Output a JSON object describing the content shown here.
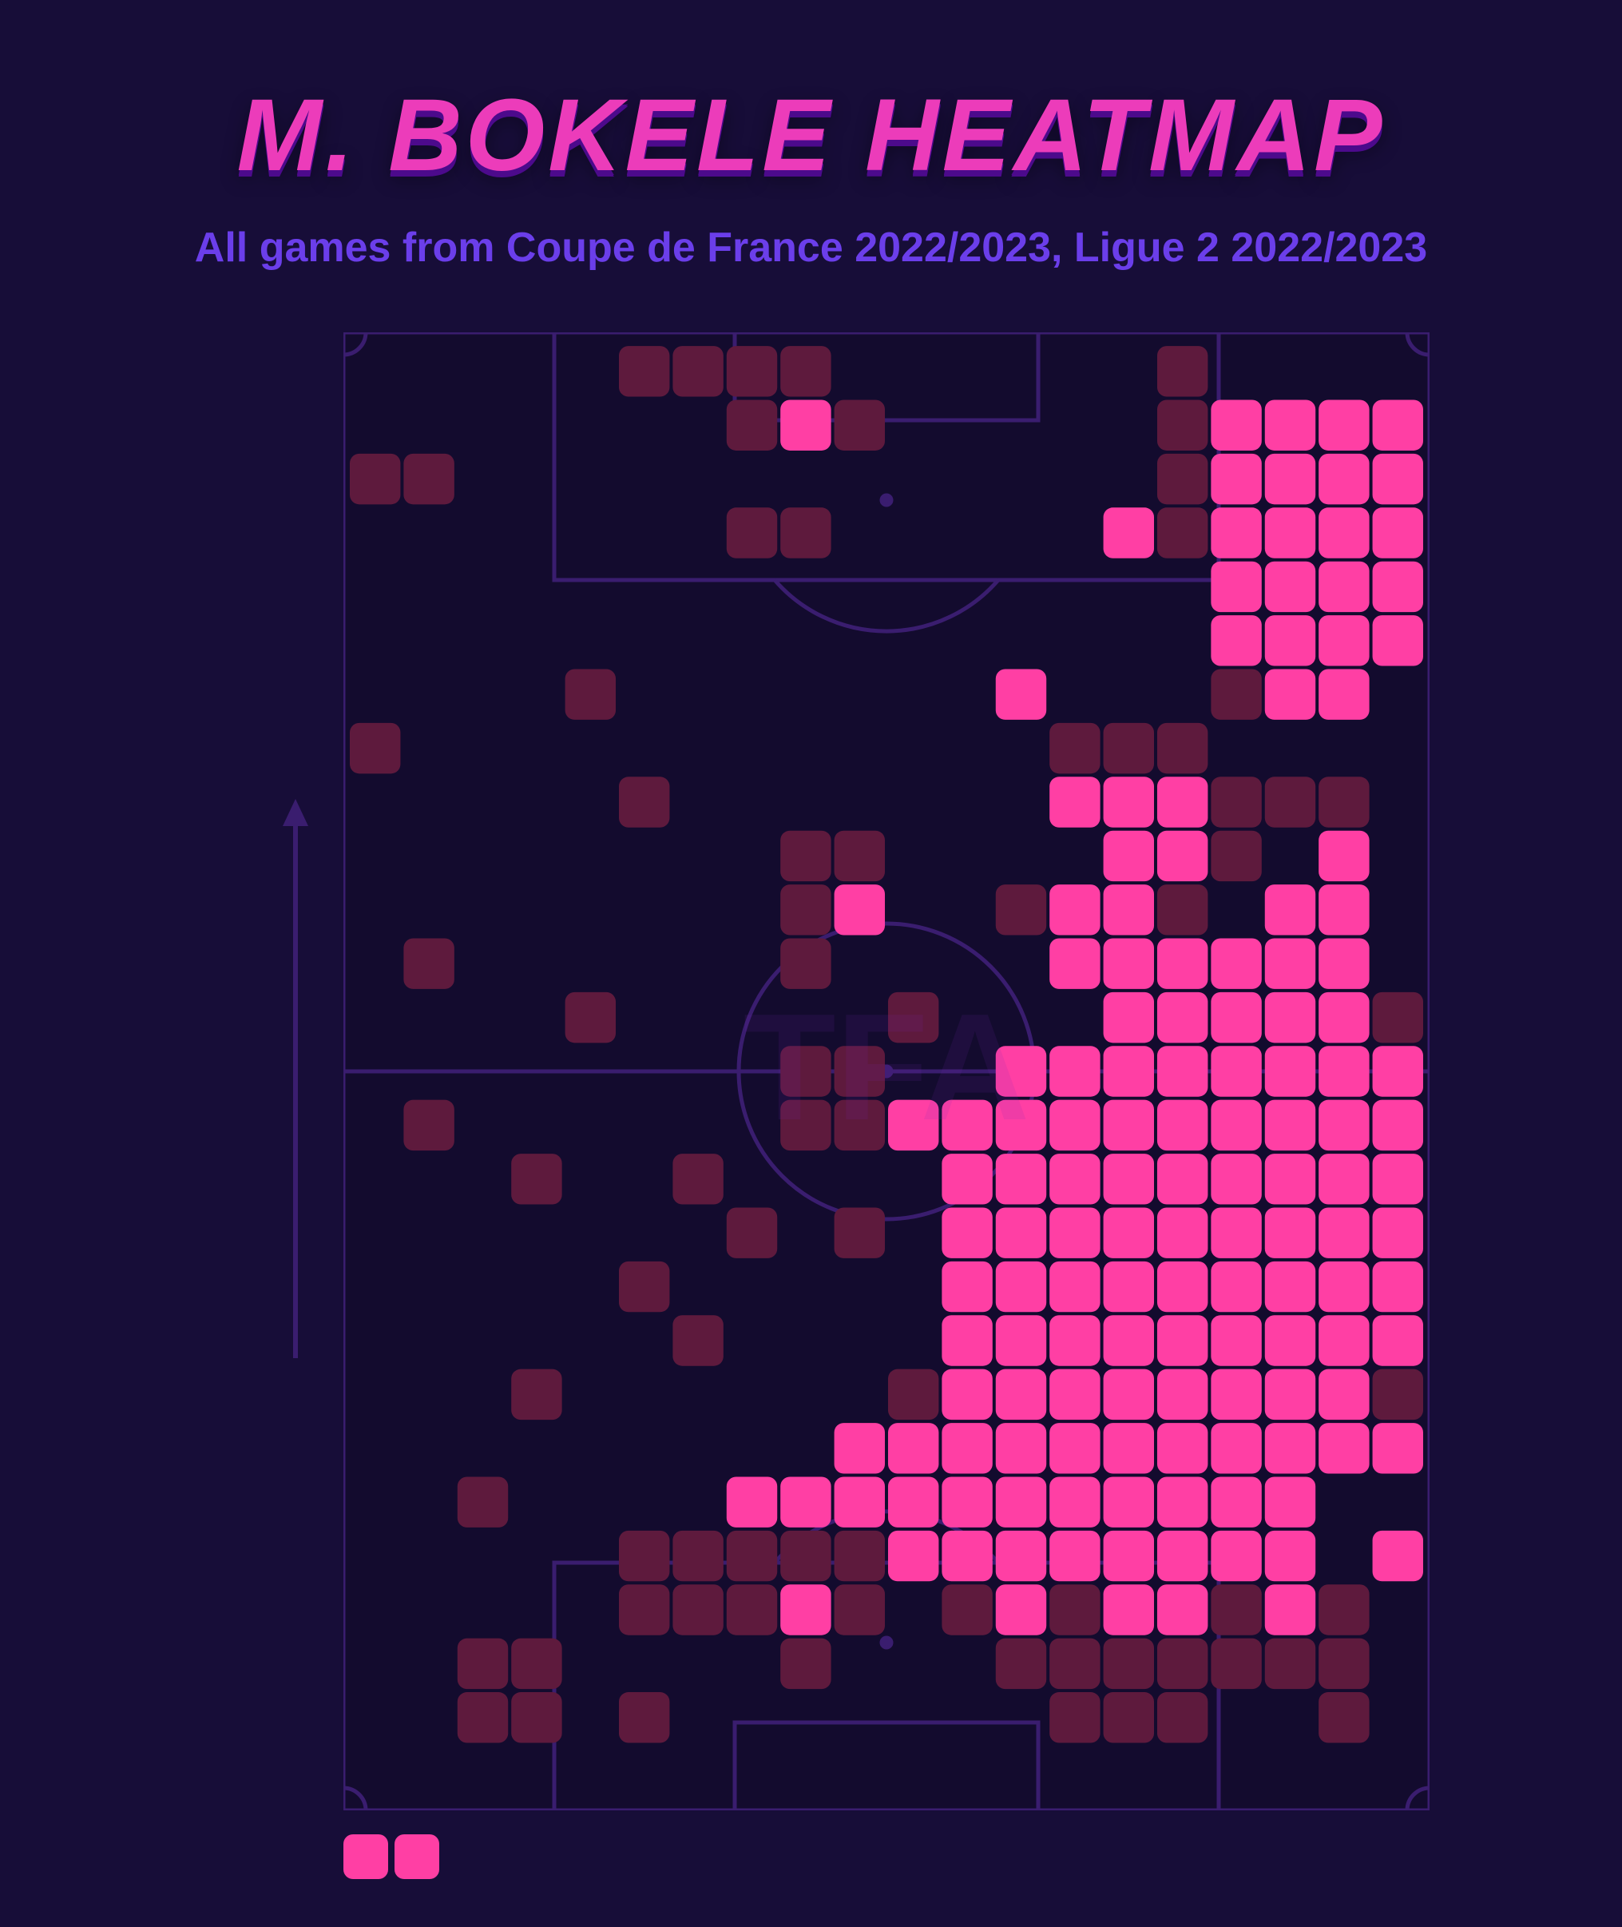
{
  "title": "M. BOKELE HEATMAP",
  "subtitle": "All games from Coupe de France 2022/2023, Ligue 2 2022/2023",
  "watermark": "TFA",
  "colors": {
    "panel_bg": "#170d38",
    "pitch_line": "#3a1d6f",
    "pitch_fill": "#150b34",
    "title": "#ec3cba",
    "title_shadow": "#4c0a8c",
    "subtitle": "#6b3eea",
    "heat_low": "#5e1a3d",
    "heat_high": "#ff3fa4",
    "arrow": "#3a1d6f"
  },
  "heatmap": {
    "type": "heatmap",
    "grid_cols": 20,
    "grid_rows": 27,
    "cell_size": 64,
    "cell_gap": 4,
    "cell_radius": 12,
    "intensity_levels": {
      "0": "none",
      "1": "low",
      "2": "high"
    },
    "legend_cells": [
      2,
      2
    ],
    "cells": [
      {
        "c": 5,
        "r": 0,
        "v": 1
      },
      {
        "c": 6,
        "r": 0,
        "v": 1
      },
      {
        "c": 7,
        "r": 0,
        "v": 1
      },
      {
        "c": 8,
        "r": 0,
        "v": 1
      },
      {
        "c": 15,
        "r": 0,
        "v": 1
      },
      {
        "c": 7,
        "r": 1,
        "v": 1
      },
      {
        "c": 8,
        "r": 1,
        "v": 2
      },
      {
        "c": 9,
        "r": 1,
        "v": 1
      },
      {
        "c": 15,
        "r": 1,
        "v": 1
      },
      {
        "c": 16,
        "r": 1,
        "v": 2
      },
      {
        "c": 17,
        "r": 1,
        "v": 2
      },
      {
        "c": 18,
        "r": 1,
        "v": 2
      },
      {
        "c": 19,
        "r": 1,
        "v": 2
      },
      {
        "c": 0,
        "r": 2,
        "v": 1
      },
      {
        "c": 1,
        "r": 2,
        "v": 1
      },
      {
        "c": 15,
        "r": 2,
        "v": 1
      },
      {
        "c": 16,
        "r": 2,
        "v": 2
      },
      {
        "c": 17,
        "r": 2,
        "v": 2
      },
      {
        "c": 18,
        "r": 2,
        "v": 2
      },
      {
        "c": 19,
        "r": 2,
        "v": 2
      },
      {
        "c": 7,
        "r": 3,
        "v": 1
      },
      {
        "c": 8,
        "r": 3,
        "v": 1
      },
      {
        "c": 14,
        "r": 3,
        "v": 2
      },
      {
        "c": 15,
        "r": 3,
        "v": 1
      },
      {
        "c": 16,
        "r": 3,
        "v": 2
      },
      {
        "c": 17,
        "r": 3,
        "v": 2
      },
      {
        "c": 18,
        "r": 3,
        "v": 2
      },
      {
        "c": 19,
        "r": 3,
        "v": 2
      },
      {
        "c": 16,
        "r": 4,
        "v": 2
      },
      {
        "c": 17,
        "r": 4,
        "v": 2
      },
      {
        "c": 18,
        "r": 4,
        "v": 2
      },
      {
        "c": 19,
        "r": 4,
        "v": 2
      },
      {
        "c": 16,
        "r": 5,
        "v": 2
      },
      {
        "c": 17,
        "r": 5,
        "v": 2
      },
      {
        "c": 18,
        "r": 5,
        "v": 2
      },
      {
        "c": 19,
        "r": 5,
        "v": 2
      },
      {
        "c": 4,
        "r": 6,
        "v": 1
      },
      {
        "c": 12,
        "r": 6,
        "v": 2
      },
      {
        "c": 16,
        "r": 6,
        "v": 1
      },
      {
        "c": 17,
        "r": 6,
        "v": 2
      },
      {
        "c": 18,
        "r": 6,
        "v": 2
      },
      {
        "c": 0,
        "r": 7,
        "v": 1
      },
      {
        "c": 13,
        "r": 7,
        "v": 1
      },
      {
        "c": 14,
        "r": 7,
        "v": 1
      },
      {
        "c": 15,
        "r": 7,
        "v": 1
      },
      {
        "c": 5,
        "r": 8,
        "v": 1
      },
      {
        "c": 13,
        "r": 8,
        "v": 2
      },
      {
        "c": 14,
        "r": 8,
        "v": 2
      },
      {
        "c": 15,
        "r": 8,
        "v": 2
      },
      {
        "c": 16,
        "r": 8,
        "v": 1
      },
      {
        "c": 17,
        "r": 8,
        "v": 1
      },
      {
        "c": 18,
        "r": 8,
        "v": 1
      },
      {
        "c": 8,
        "r": 9,
        "v": 1
      },
      {
        "c": 9,
        "r": 9,
        "v": 1
      },
      {
        "c": 14,
        "r": 9,
        "v": 2
      },
      {
        "c": 15,
        "r": 9,
        "v": 2
      },
      {
        "c": 16,
        "r": 9,
        "v": 1
      },
      {
        "c": 18,
        "r": 9,
        "v": 2
      },
      {
        "c": 8,
        "r": 10,
        "v": 1
      },
      {
        "c": 9,
        "r": 10,
        "v": 2
      },
      {
        "c": 12,
        "r": 10,
        "v": 1
      },
      {
        "c": 13,
        "r": 10,
        "v": 2
      },
      {
        "c": 14,
        "r": 10,
        "v": 2
      },
      {
        "c": 15,
        "r": 10,
        "v": 1
      },
      {
        "c": 17,
        "r": 10,
        "v": 2
      },
      {
        "c": 18,
        "r": 10,
        "v": 2
      },
      {
        "c": 1,
        "r": 11,
        "v": 1
      },
      {
        "c": 8,
        "r": 11,
        "v": 1
      },
      {
        "c": 13,
        "r": 11,
        "v": 2
      },
      {
        "c": 14,
        "r": 11,
        "v": 2
      },
      {
        "c": 15,
        "r": 11,
        "v": 2
      },
      {
        "c": 16,
        "r": 11,
        "v": 2
      },
      {
        "c": 17,
        "r": 11,
        "v": 2
      },
      {
        "c": 18,
        "r": 11,
        "v": 2
      },
      {
        "c": 4,
        "r": 12,
        "v": 1
      },
      {
        "c": 10,
        "r": 12,
        "v": 1
      },
      {
        "c": 14,
        "r": 12,
        "v": 2
      },
      {
        "c": 15,
        "r": 12,
        "v": 2
      },
      {
        "c": 16,
        "r": 12,
        "v": 2
      },
      {
        "c": 17,
        "r": 12,
        "v": 2
      },
      {
        "c": 18,
        "r": 12,
        "v": 2
      },
      {
        "c": 19,
        "r": 12,
        "v": 1
      },
      {
        "c": 8,
        "r": 13,
        "v": 1
      },
      {
        "c": 9,
        "r": 13,
        "v": 1
      },
      {
        "c": 12,
        "r": 13,
        "v": 2
      },
      {
        "c": 13,
        "r": 13,
        "v": 2
      },
      {
        "c": 14,
        "r": 13,
        "v": 2
      },
      {
        "c": 15,
        "r": 13,
        "v": 2
      },
      {
        "c": 16,
        "r": 13,
        "v": 2
      },
      {
        "c": 17,
        "r": 13,
        "v": 2
      },
      {
        "c": 18,
        "r": 13,
        "v": 2
      },
      {
        "c": 19,
        "r": 13,
        "v": 2
      },
      {
        "c": 1,
        "r": 14,
        "v": 1
      },
      {
        "c": 8,
        "r": 14,
        "v": 1
      },
      {
        "c": 9,
        "r": 14,
        "v": 1
      },
      {
        "c": 10,
        "r": 14,
        "v": 2
      },
      {
        "c": 11,
        "r": 14,
        "v": 2
      },
      {
        "c": 12,
        "r": 14,
        "v": 2
      },
      {
        "c": 13,
        "r": 14,
        "v": 2
      },
      {
        "c": 14,
        "r": 14,
        "v": 2
      },
      {
        "c": 15,
        "r": 14,
        "v": 2
      },
      {
        "c": 16,
        "r": 14,
        "v": 2
      },
      {
        "c": 17,
        "r": 14,
        "v": 2
      },
      {
        "c": 18,
        "r": 14,
        "v": 2
      },
      {
        "c": 19,
        "r": 14,
        "v": 2
      },
      {
        "c": 3,
        "r": 15,
        "v": 1
      },
      {
        "c": 6,
        "r": 15,
        "v": 1
      },
      {
        "c": 11,
        "r": 15,
        "v": 2
      },
      {
        "c": 12,
        "r": 15,
        "v": 2
      },
      {
        "c": 13,
        "r": 15,
        "v": 2
      },
      {
        "c": 14,
        "r": 15,
        "v": 2
      },
      {
        "c": 15,
        "r": 15,
        "v": 2
      },
      {
        "c": 16,
        "r": 15,
        "v": 2
      },
      {
        "c": 17,
        "r": 15,
        "v": 2
      },
      {
        "c": 18,
        "r": 15,
        "v": 2
      },
      {
        "c": 19,
        "r": 15,
        "v": 2
      },
      {
        "c": 7,
        "r": 16,
        "v": 1
      },
      {
        "c": 9,
        "r": 16,
        "v": 1
      },
      {
        "c": 11,
        "r": 16,
        "v": 2
      },
      {
        "c": 12,
        "r": 16,
        "v": 2
      },
      {
        "c": 13,
        "r": 16,
        "v": 2
      },
      {
        "c": 14,
        "r": 16,
        "v": 2
      },
      {
        "c": 15,
        "r": 16,
        "v": 2
      },
      {
        "c": 16,
        "r": 16,
        "v": 2
      },
      {
        "c": 17,
        "r": 16,
        "v": 2
      },
      {
        "c": 18,
        "r": 16,
        "v": 2
      },
      {
        "c": 19,
        "r": 16,
        "v": 2
      },
      {
        "c": 5,
        "r": 17,
        "v": 1
      },
      {
        "c": 11,
        "r": 17,
        "v": 2
      },
      {
        "c": 12,
        "r": 17,
        "v": 2
      },
      {
        "c": 13,
        "r": 17,
        "v": 2
      },
      {
        "c": 14,
        "r": 17,
        "v": 2
      },
      {
        "c": 15,
        "r": 17,
        "v": 2
      },
      {
        "c": 16,
        "r": 17,
        "v": 2
      },
      {
        "c": 17,
        "r": 17,
        "v": 2
      },
      {
        "c": 18,
        "r": 17,
        "v": 2
      },
      {
        "c": 19,
        "r": 17,
        "v": 2
      },
      {
        "c": 6,
        "r": 18,
        "v": 1
      },
      {
        "c": 11,
        "r": 18,
        "v": 2
      },
      {
        "c": 12,
        "r": 18,
        "v": 2
      },
      {
        "c": 13,
        "r": 18,
        "v": 2
      },
      {
        "c": 14,
        "r": 18,
        "v": 2
      },
      {
        "c": 15,
        "r": 18,
        "v": 2
      },
      {
        "c": 16,
        "r": 18,
        "v": 2
      },
      {
        "c": 17,
        "r": 18,
        "v": 2
      },
      {
        "c": 18,
        "r": 18,
        "v": 2
      },
      {
        "c": 19,
        "r": 18,
        "v": 2
      },
      {
        "c": 3,
        "r": 19,
        "v": 1
      },
      {
        "c": 10,
        "r": 19,
        "v": 1
      },
      {
        "c": 11,
        "r": 19,
        "v": 2
      },
      {
        "c": 12,
        "r": 19,
        "v": 2
      },
      {
        "c": 13,
        "r": 19,
        "v": 2
      },
      {
        "c": 14,
        "r": 19,
        "v": 2
      },
      {
        "c": 15,
        "r": 19,
        "v": 2
      },
      {
        "c": 16,
        "r": 19,
        "v": 2
      },
      {
        "c": 17,
        "r": 19,
        "v": 2
      },
      {
        "c": 18,
        "r": 19,
        "v": 2
      },
      {
        "c": 19,
        "r": 19,
        "v": 1
      },
      {
        "c": 9,
        "r": 20,
        "v": 2
      },
      {
        "c": 10,
        "r": 20,
        "v": 2
      },
      {
        "c": 11,
        "r": 20,
        "v": 2
      },
      {
        "c": 12,
        "r": 20,
        "v": 2
      },
      {
        "c": 13,
        "r": 20,
        "v": 2
      },
      {
        "c": 14,
        "r": 20,
        "v": 2
      },
      {
        "c": 15,
        "r": 20,
        "v": 2
      },
      {
        "c": 16,
        "r": 20,
        "v": 2
      },
      {
        "c": 17,
        "r": 20,
        "v": 2
      },
      {
        "c": 18,
        "r": 20,
        "v": 2
      },
      {
        "c": 19,
        "r": 20,
        "v": 2
      },
      {
        "c": 2,
        "r": 21,
        "v": 1
      },
      {
        "c": 7,
        "r": 21,
        "v": 2
      },
      {
        "c": 8,
        "r": 21,
        "v": 2
      },
      {
        "c": 9,
        "r": 21,
        "v": 2
      },
      {
        "c": 10,
        "r": 21,
        "v": 2
      },
      {
        "c": 11,
        "r": 21,
        "v": 2
      },
      {
        "c": 12,
        "r": 21,
        "v": 2
      },
      {
        "c": 13,
        "r": 21,
        "v": 2
      },
      {
        "c": 14,
        "r": 21,
        "v": 2
      },
      {
        "c": 15,
        "r": 21,
        "v": 2
      },
      {
        "c": 16,
        "r": 21,
        "v": 2
      },
      {
        "c": 17,
        "r": 21,
        "v": 2
      },
      {
        "c": 5,
        "r": 22,
        "v": 1
      },
      {
        "c": 6,
        "r": 22,
        "v": 1
      },
      {
        "c": 7,
        "r": 22,
        "v": 1
      },
      {
        "c": 8,
        "r": 22,
        "v": 1
      },
      {
        "c": 9,
        "r": 22,
        "v": 1
      },
      {
        "c": 10,
        "r": 22,
        "v": 2
      },
      {
        "c": 11,
        "r": 22,
        "v": 2
      },
      {
        "c": 12,
        "r": 22,
        "v": 2
      },
      {
        "c": 13,
        "r": 22,
        "v": 2
      },
      {
        "c": 14,
        "r": 22,
        "v": 2
      },
      {
        "c": 15,
        "r": 22,
        "v": 2
      },
      {
        "c": 16,
        "r": 22,
        "v": 2
      },
      {
        "c": 17,
        "r": 22,
        "v": 2
      },
      {
        "c": 19,
        "r": 22,
        "v": 2
      },
      {
        "c": 5,
        "r": 23,
        "v": 1
      },
      {
        "c": 6,
        "r": 23,
        "v": 1
      },
      {
        "c": 7,
        "r": 23,
        "v": 1
      },
      {
        "c": 8,
        "r": 23,
        "v": 2
      },
      {
        "c": 9,
        "r": 23,
        "v": 1
      },
      {
        "c": 11,
        "r": 23,
        "v": 1
      },
      {
        "c": 12,
        "r": 23,
        "v": 2
      },
      {
        "c": 13,
        "r": 23,
        "v": 1
      },
      {
        "c": 14,
        "r": 23,
        "v": 2
      },
      {
        "c": 15,
        "r": 23,
        "v": 2
      },
      {
        "c": 16,
        "r": 23,
        "v": 1
      },
      {
        "c": 17,
        "r": 23,
        "v": 2
      },
      {
        "c": 18,
        "r": 23,
        "v": 1
      },
      {
        "c": 2,
        "r": 24,
        "v": 1
      },
      {
        "c": 3,
        "r": 24,
        "v": 1
      },
      {
        "c": 8,
        "r": 24,
        "v": 1
      },
      {
        "c": 12,
        "r": 24,
        "v": 1
      },
      {
        "c": 13,
        "r": 24,
        "v": 1
      },
      {
        "c": 14,
        "r": 24,
        "v": 1
      },
      {
        "c": 15,
        "r": 24,
        "v": 1
      },
      {
        "c": 16,
        "r": 24,
        "v": 1
      },
      {
        "c": 17,
        "r": 24,
        "v": 1
      },
      {
        "c": 18,
        "r": 24,
        "v": 1
      },
      {
        "c": 2,
        "r": 25,
        "v": 1
      },
      {
        "c": 3,
        "r": 25,
        "v": 1
      },
      {
        "c": 5,
        "r": 25,
        "v": 1
      },
      {
        "c": 13,
        "r": 25,
        "v": 1
      },
      {
        "c": 14,
        "r": 25,
        "v": 1
      },
      {
        "c": 15,
        "r": 25,
        "v": 1
      },
      {
        "c": 18,
        "r": 25,
        "v": 1
      }
    ]
  },
  "pitch": {
    "viewbox_w": 1360,
    "viewbox_h": 1850,
    "line_width": 5
  }
}
